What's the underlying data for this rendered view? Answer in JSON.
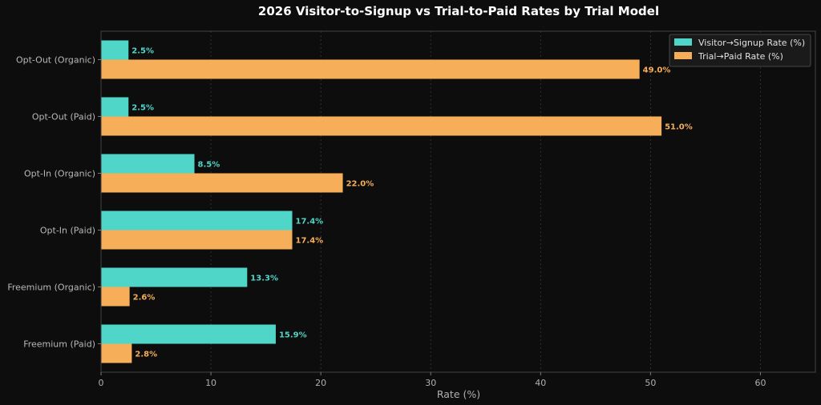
{
  "chart_data": {
    "type": "bar",
    "orientation": "horizontal",
    "title": "2026 Visitor-to-Signup vs Trial-to-Paid Rates by Trial Model",
    "xlabel": "Rate (%)",
    "ylabel": "",
    "xlim": [
      0,
      65
    ],
    "xticks": [
      0,
      10,
      20,
      30,
      40,
      50,
      60
    ],
    "grid": "x-dashed",
    "legend_position": "top-right",
    "categories": [
      "Opt-Out (Organic)",
      "Opt-Out (Paid)",
      "Opt-In (Organic)",
      "Opt-In (Paid)",
      "Freemium (Organic)",
      "Freemium (Paid)"
    ],
    "series": [
      {
        "name": "Visitor→Signup Rate (%)",
        "color": "#4fd6c9",
        "values": [
          2.5,
          2.5,
          8.5,
          17.4,
          13.3,
          15.9
        ],
        "labels": [
          "2.5%",
          "2.5%",
          "8.5%",
          "17.4%",
          "13.3%",
          "15.9%"
        ]
      },
      {
        "name": "Trial→Paid Rate (%)",
        "color": "#f7ae58",
        "values": [
          49.0,
          51.0,
          22.0,
          17.4,
          2.6,
          2.8
        ],
        "labels": [
          "49.0%",
          "51.0%",
          "22.0%",
          "17.4%",
          "2.6%",
          "2.8%"
        ]
      }
    ]
  }
}
